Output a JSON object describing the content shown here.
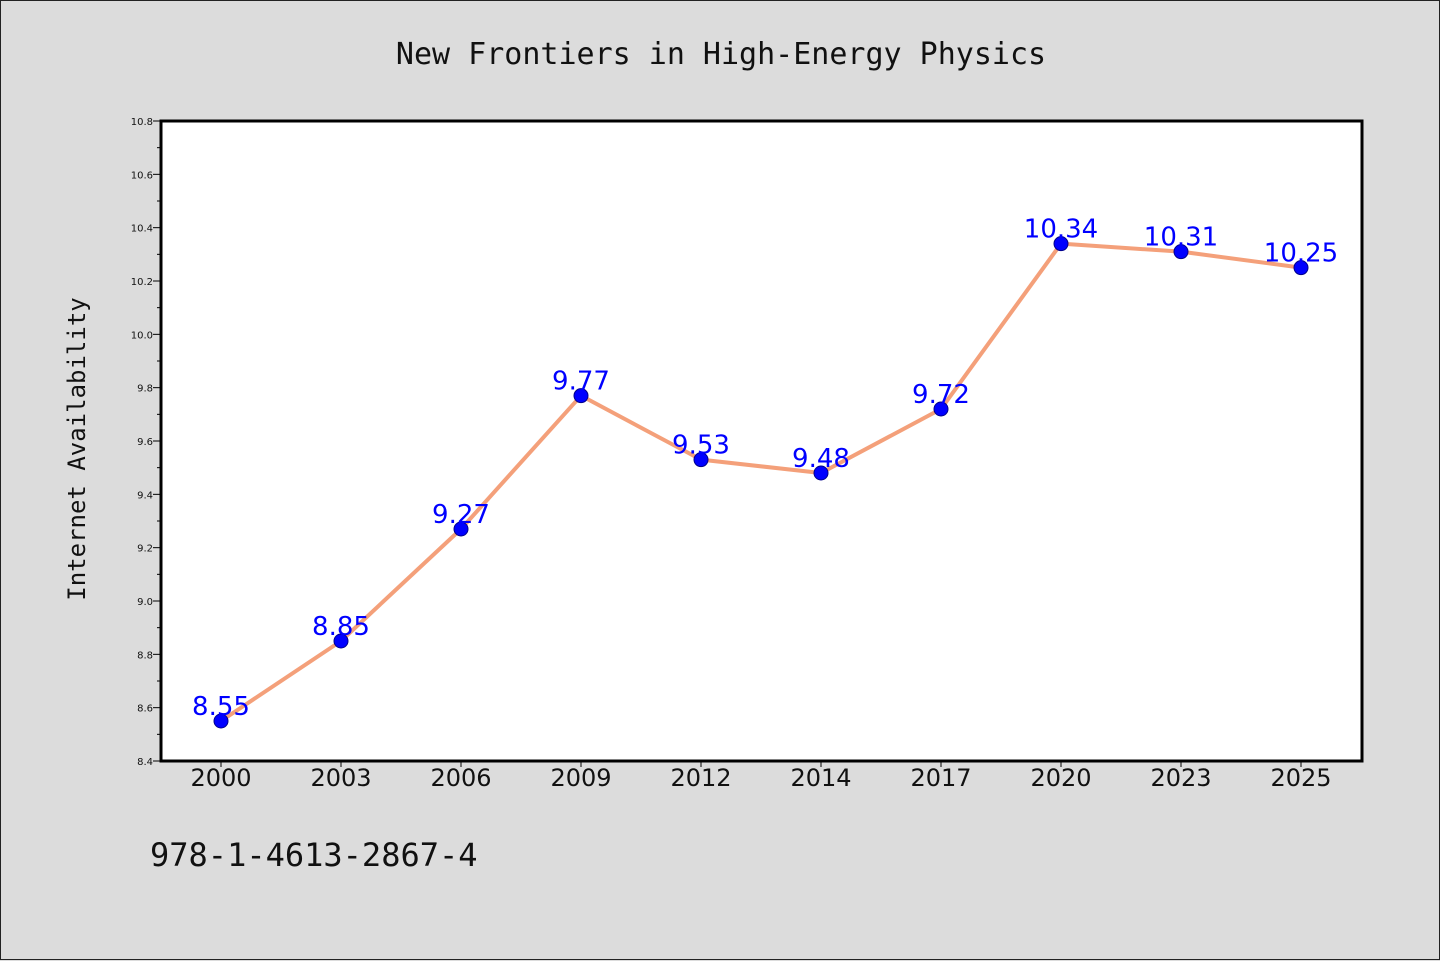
{
  "colors": {
    "background": "#dcdcdc",
    "plot_background": "#ffffff",
    "line": "#f4a07a",
    "marker": "#0000ff",
    "data_label": "#0000ff"
  },
  "footer": {
    "isbn": "978-1-4613-2867-4"
  },
  "chart_data": {
    "type": "line",
    "title": "New Frontiers in High-Energy Physics",
    "xlabel": "",
    "ylabel": "Internet Availability",
    "categories": [
      "2000",
      "2003",
      "2006",
      "2009",
      "2012",
      "2014",
      "2017",
      "2020",
      "2023",
      "2025"
    ],
    "series": [
      {
        "values": [
          8.55,
          8.85,
          9.27,
          9.77,
          9.53,
          9.48,
          9.72,
          10.34,
          10.31,
          10.25
        ]
      }
    ],
    "ylim": [
      8.4,
      10.8
    ],
    "yticks": [
      "8.4",
      "8.6",
      "8.8",
      "9.0",
      "9.2",
      "9.4",
      "9.6",
      "9.8",
      "10.0",
      "10.2",
      "10.4",
      "10.6",
      "10.8"
    ],
    "grid": false,
    "legend": "none"
  }
}
